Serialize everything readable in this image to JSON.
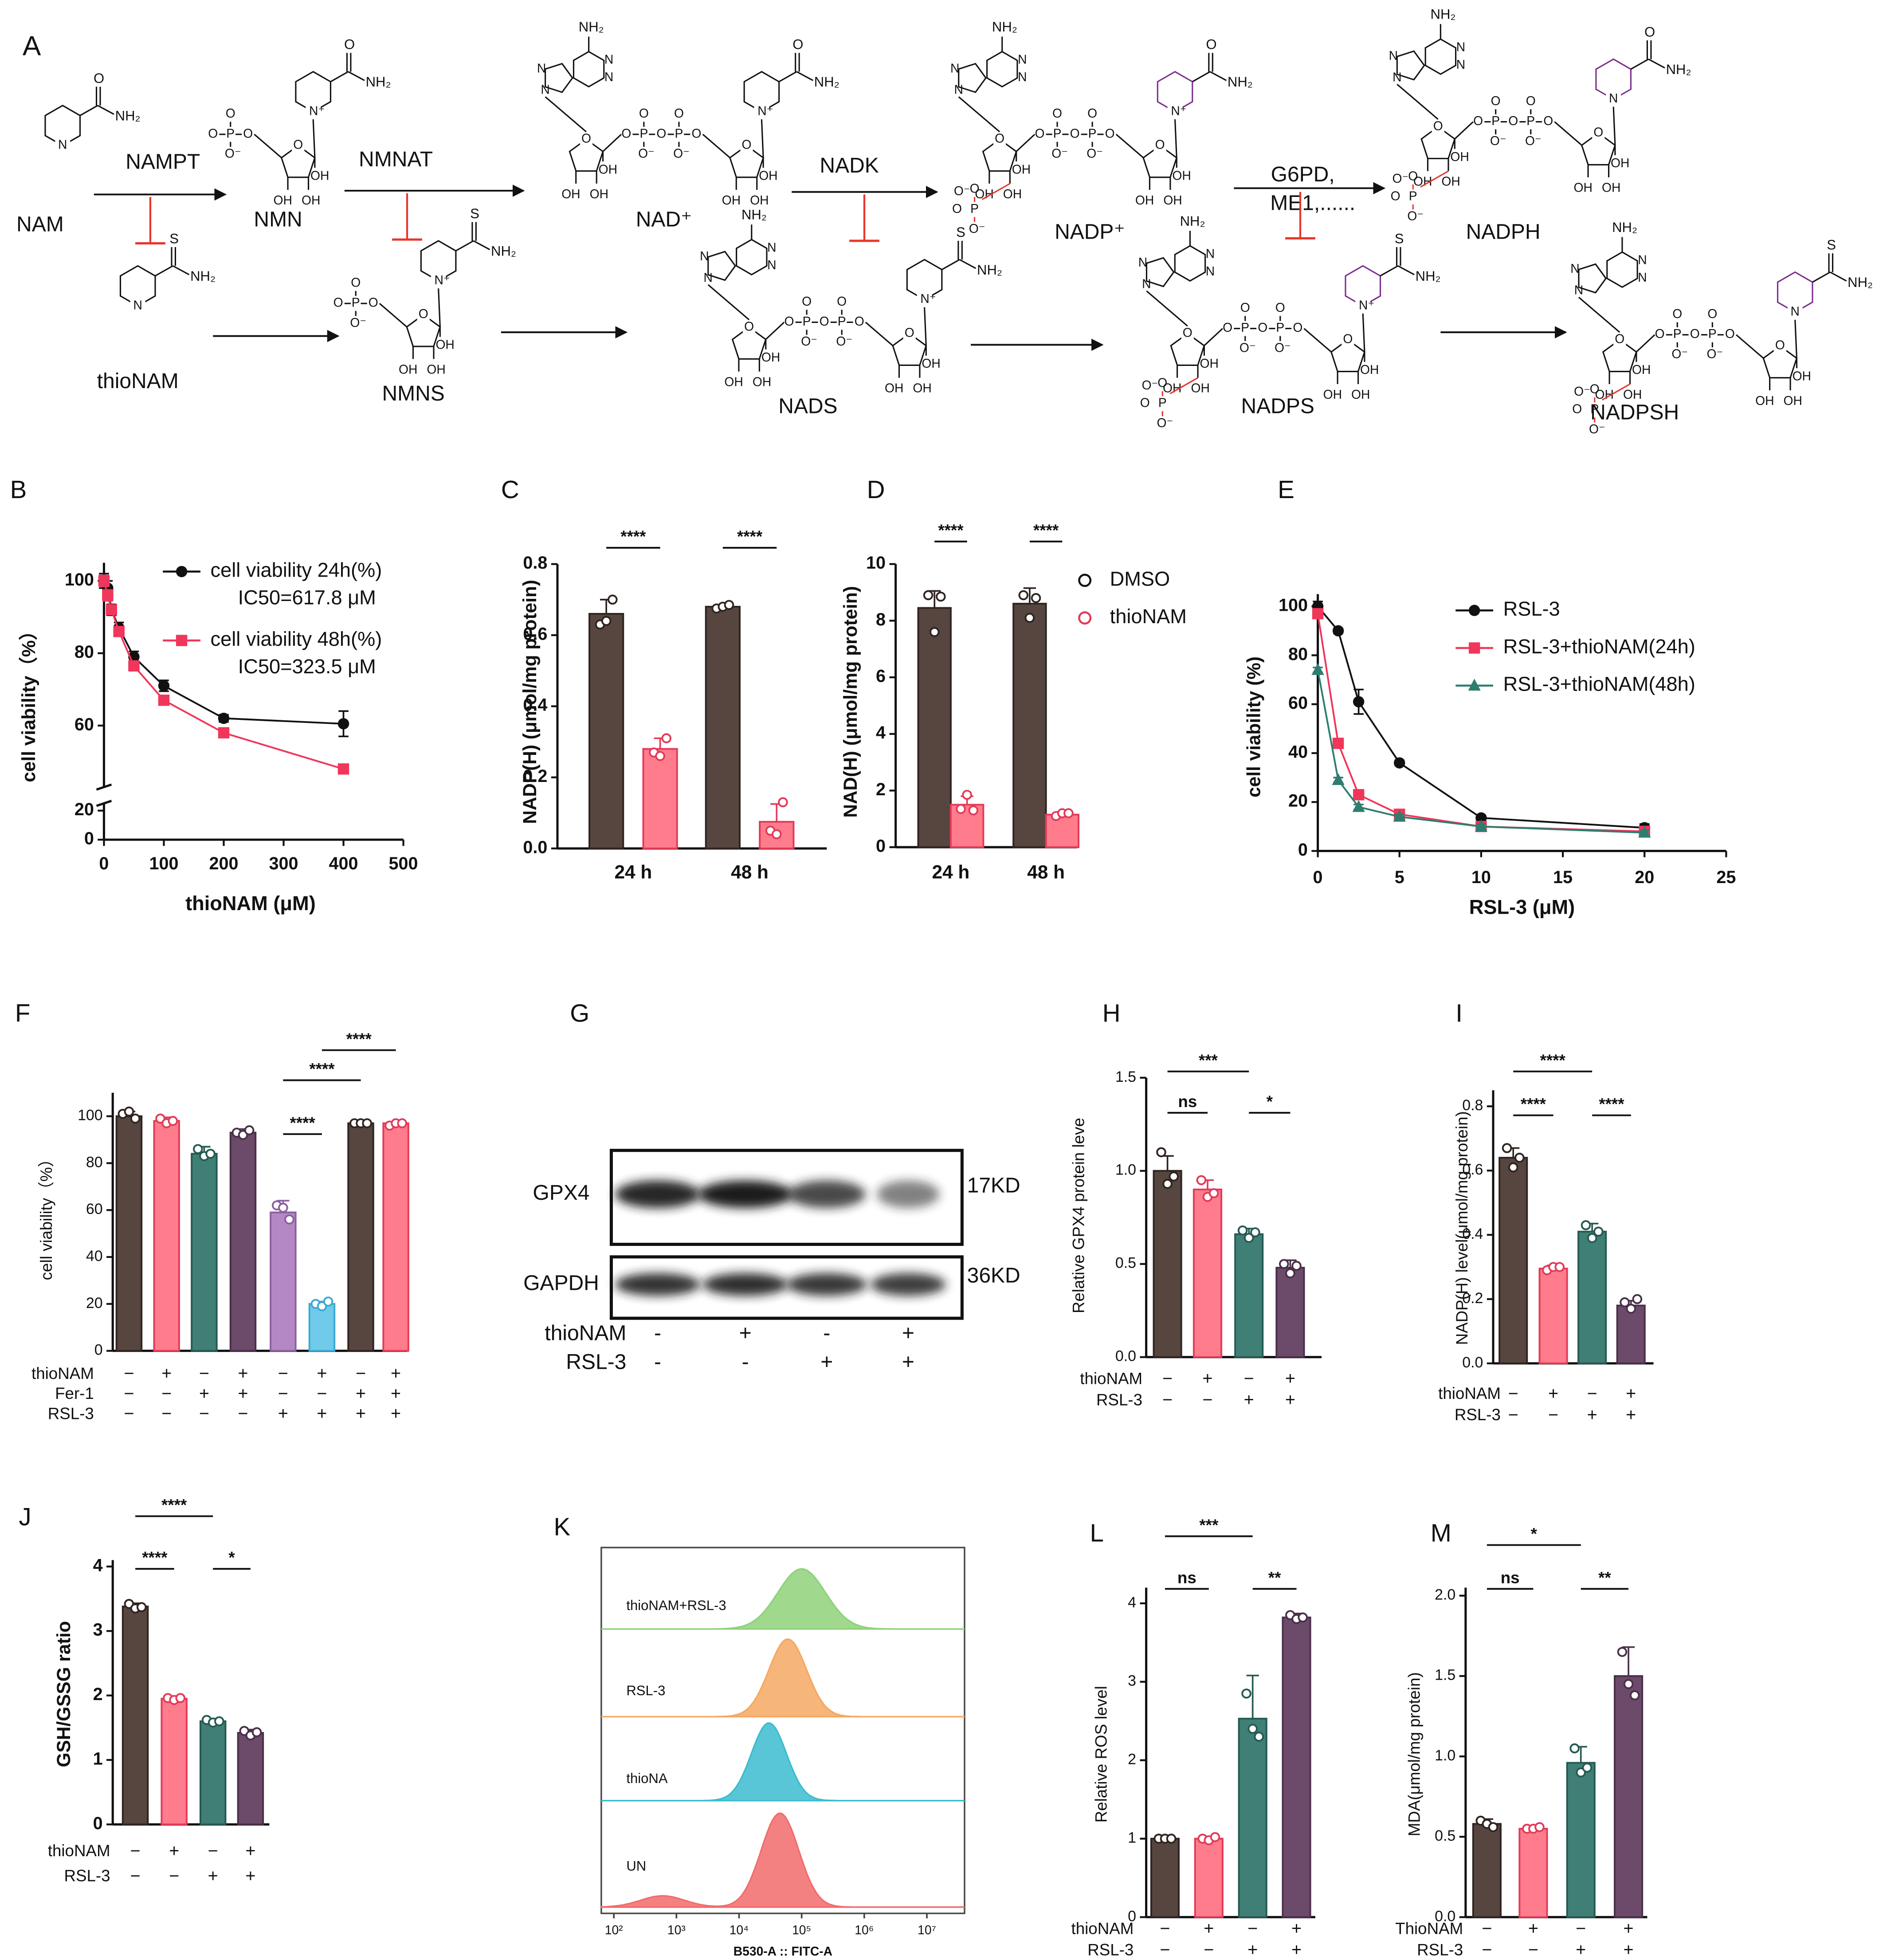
{
  "pathway": {
    "panel": "A",
    "compounds": [
      "NAM",
      "NMN",
      "NAD⁺",
      "NADP⁺",
      "NADPH",
      "thioNAM",
      "NMNS",
      "NADS",
      "NADPS",
      "NADPSH"
    ],
    "enzymes": [
      "NAMPT",
      "NMNAT",
      "NADK",
      "G6PD,",
      "ME1,......"
    ],
    "atoms": {
      "amine": "NH₂",
      "hydroxyl": "OH",
      "nitrogen": "N",
      "cation": "N⁺",
      "oxygen": "O",
      "oxide": "O⁻",
      "phosphorus": "P",
      "sulfur": "S"
    }
  },
  "blot": {
    "panel": "G",
    "bands": [
      {
        "name": "GPX4",
        "size": "17KD"
      },
      {
        "name": "GAPDH",
        "size": "36KD"
      }
    ],
    "conditions": [
      {
        "name": "thioNAM",
        "signs": [
          "-",
          "+",
          "-",
          "+"
        ]
      },
      {
        "name": "RSL-3",
        "signs": [
          "-",
          "-",
          "+",
          "+"
        ]
      }
    ]
  },
  "chart_data": [
    {
      "type": "line",
      "panel": "B",
      "xlabel": "thioNAM (μM)",
      "ylabel": "cell viability（%）",
      "xlim": [
        0,
        500
      ],
      "xticks": [
        0,
        100,
        200,
        300,
        400,
        500
      ],
      "ylim": [
        0,
        105
      ],
      "axis_break": [
        25,
        43
      ],
      "yticks": [
        0,
        20,
        60,
        80,
        100
      ],
      "series": [
        {
          "name": "cell viability 24h(%)",
          "ic50_label": "IC50=617.8 μM",
          "color": "#111111",
          "marker": "circle",
          "x": [
            0,
            6.25,
            12.5,
            25,
            50,
            100,
            200,
            400
          ],
          "values": [
            100,
            98,
            92,
            87,
            79,
            71,
            62,
            60.5
          ],
          "errors": [
            2,
            2,
            1.5,
            1.5,
            1.5,
            1.5,
            1,
            3.5
          ]
        },
        {
          "name": "cell viability 48h(%)",
          "ic50_label": "IC50=323.5 μM",
          "color": "#f0365a",
          "marker": "square",
          "x": [
            0,
            6.25,
            12.5,
            25,
            50,
            100,
            200,
            400
          ],
          "values": [
            100,
            96,
            92,
            86,
            76.5,
            67,
            58,
            48
          ],
          "errors": [
            1.5,
            1.5,
            1,
            1,
            1,
            1,
            1,
            1
          ]
        }
      ]
    },
    {
      "type": "bar",
      "panel": "C",
      "ylabel": "NADP(H)  (μmol/mg protein)",
      "categories": [
        "24 h",
        "48 h"
      ],
      "ylim": [
        0,
        0.8
      ],
      "yticks": [
        {
          "value": 0,
          "label": "0.0"
        },
        0.2,
        0.4,
        0.6,
        0.8
      ],
      "series": [
        {
          "color": "#574640",
          "edge": "#2f2420",
          "values": [
            0.66,
            0.68
          ],
          "errors": [
            0.04,
            0.005
          ],
          "replicates": [
            [
              0.63,
              0.64,
              0.7
            ],
            [
              0.675,
              0.68,
              0.685
            ]
          ]
        },
        {
          "color": "#ff7c8c",
          "edge": "#e33a58",
          "values": [
            0.28,
            0.075
          ],
          "errors": [
            0.03,
            0.05
          ],
          "replicates": [
            [
              0.27,
              0.26,
              0.31
            ],
            [
              0.05,
              0.04,
              0.13
            ]
          ]
        }
      ],
      "significance": [
        {
          "label": "****",
          "from": 0,
          "to": 1
        },
        {
          "label": "****",
          "from": 2,
          "to": 3
        }
      ]
    },
    {
      "type": "bar",
      "panel": "D",
      "ylabel": "NAD(H)  (μmol/mg protein)",
      "categories": [
        "24 h",
        "48 h"
      ],
      "ylim": [
        0,
        10
      ],
      "yticks": [
        0,
        2,
        4,
        6,
        8,
        10
      ],
      "legend": true,
      "series": [
        {
          "name": "DMSO",
          "color": "#574640",
          "edge": "#2f2420",
          "values": [
            8.45,
            8.6
          ],
          "errors": [
            0.6,
            0.55
          ],
          "replicates": [
            [
              8.9,
              7.6,
              8.85
            ],
            [
              8.9,
              8.1,
              8.8
            ]
          ]
        },
        {
          "name": "thioNAM",
          "color": "#ff7c8c",
          "edge": "#e33a58",
          "values": [
            1.5,
            1.15
          ],
          "errors": [
            0.3,
            0.1
          ],
          "replicates": [
            [
              1.35,
              1.85,
              1.3
            ],
            [
              1.1,
              1.2,
              1.2
            ]
          ]
        }
      ],
      "significance": [
        {
          "label": "****",
          "from": 0,
          "to": 1
        },
        {
          "label": "****",
          "from": 2,
          "to": 3
        }
      ]
    },
    {
      "type": "line",
      "panel": "E",
      "xlabel": "RSL-3 (μM)",
      "ylabel": "cell viability (%)",
      "xlim": [
        0,
        25
      ],
      "xticks": [
        0,
        5,
        10,
        15,
        20,
        25
      ],
      "ylim": [
        0,
        105
      ],
      "yticks": [
        0,
        20,
        40,
        60,
        80,
        100
      ],
      "series": [
        {
          "name": "RSL-3",
          "color": "#111111",
          "marker": "circle",
          "x": [
            0,
            1.25,
            2.5,
            5,
            10,
            20
          ],
          "values": [
            100,
            90,
            61,
            36,
            13.5,
            9.5
          ],
          "errors": [
            2,
            1,
            5,
            1,
            1,
            1.5
          ]
        },
        {
          "name": "RSL-3+thioNAM(24h)",
          "color": "#f0365a",
          "marker": "square",
          "x": [
            0,
            1.25,
            2.5,
            5,
            10,
            20
          ],
          "values": [
            97,
            44,
            23,
            15,
            10,
            8
          ],
          "errors": [
            1,
            1,
            1,
            1,
            1,
            1
          ]
        },
        {
          "name": "RSL-3+thioNAM(48h)",
          "color": "#2e7d6f",
          "marker": "triangle",
          "x": [
            0,
            1.25,
            2.5,
            5,
            10,
            20
          ],
          "values": [
            74,
            29,
            18,
            14,
            10,
            7.5
          ],
          "errors": [
            1,
            1,
            1,
            1,
            1,
            1
          ]
        }
      ]
    },
    {
      "type": "bar",
      "panel": "F",
      "ylabel": "cell viability（%）",
      "ylim": [
        0,
        110
      ],
      "yticks": [
        0,
        20,
        40,
        60,
        80,
        100
      ],
      "values": [
        100,
        98,
        84,
        93,
        59,
        20,
        97,
        97
      ],
      "errors": [
        2,
        1.5,
        3,
        1.5,
        5,
        1,
        0.5,
        0.5
      ],
      "colors": [
        "#574640",
        "#ff7c8c",
        "#3f7f76",
        "#6c4a6a",
        "#b488c4",
        "#6fcbe9",
        "#574640",
        "#ff7c8c"
      ],
      "edge_colors": [
        "#2f2420",
        "#e33a58",
        "#255a52",
        "#4a2f49",
        "#8c5fa0",
        "#3ba9d4",
        "#2f2420",
        "#e33a58"
      ],
      "replicates": [
        [
          101,
          102,
          99
        ],
        [
          99,
          97,
          98
        ],
        [
          86,
          83,
          84
        ],
        [
          93,
          92,
          94
        ],
        [
          62,
          61,
          56
        ],
        [
          20,
          19,
          21
        ],
        [
          97,
          97,
          97
        ],
        [
          96,
          97,
          97
        ]
      ],
      "conditions": [
        {
          "name": "thioNAM",
          "signs": [
            "−",
            "+",
            "−",
            "+",
            "−",
            "+",
            "−",
            "+"
          ]
        },
        {
          "name": "Fer-1",
          "signs": [
            "−",
            "−",
            "+",
            "+",
            "−",
            "−",
            "+",
            "+"
          ]
        },
        {
          "name": "RSL-3",
          "signs": [
            "−",
            "−",
            "−",
            "−",
            "+",
            "+",
            "+",
            "+"
          ]
        }
      ],
      "significance": [
        {
          "label": "****",
          "from": 4,
          "to": 5
        },
        {
          "label": "****",
          "from": 4,
          "to": 6
        },
        {
          "label": "****",
          "from": 5,
          "to": 7
        }
      ]
    },
    {
      "type": "bar",
      "panel": "H",
      "ylabel": "Relative GPX4 protein leve",
      "ylim": [
        0,
        1.5
      ],
      "yticks": [
        {
          "value": 0,
          "label": "0.0"
        },
        0.5,
        {
          "value": 1,
          "label": "1.0"
        },
        1.5
      ],
      "values": [
        1.0,
        0.9,
        0.66,
        0.48
      ],
      "errors": [
        0.08,
        0.05,
        0.03,
        0.04
      ],
      "colors": [
        "#574640",
        "#ff7c8c",
        "#3f7f76",
        "#6c4a6a"
      ],
      "edge_colors": [
        "#2f2420",
        "#e33a58",
        "#255a52",
        "#4a2f49"
      ],
      "replicates": [
        [
          1.1,
          0.93,
          0.97
        ],
        [
          0.95,
          0.86,
          0.88
        ],
        [
          0.68,
          0.64,
          0.67
        ],
        [
          0.5,
          0.45,
          0.49
        ]
      ],
      "conditions": [
        {
          "name": "thioNAM",
          "signs": [
            "−",
            "+",
            "−",
            "+"
          ]
        },
        {
          "name": "RSL-3",
          "signs": [
            "−",
            "−",
            "+",
            "+"
          ]
        }
      ],
      "significance": [
        {
          "label": "ns",
          "from": 0,
          "to": 1
        },
        {
          "label": "***",
          "from": 0,
          "to": 2
        },
        {
          "label": "*",
          "from": 2,
          "to": 3
        }
      ]
    },
    {
      "type": "bar",
      "panel": "I",
      "ylabel": "NADP(H) level(μmol/mg protein)",
      "ylim": [
        0,
        0.85
      ],
      "yticks": [
        {
          "value": 0,
          "label": "0.0"
        },
        0.2,
        0.4,
        0.6,
        0.8
      ],
      "values": [
        0.64,
        0.295,
        0.41,
        0.18
      ],
      "errors": [
        0.03,
        0.01,
        0.025,
        0.015
      ],
      "colors": [
        "#574640",
        "#ff7c8c",
        "#3f7f76",
        "#6c4a6a"
      ],
      "edge_colors": [
        "#2f2420",
        "#e33a58",
        "#255a52",
        "#4a2f49"
      ],
      "replicates": [
        [
          0.67,
          0.61,
          0.64
        ],
        [
          0.29,
          0.3,
          0.3
        ],
        [
          0.43,
          0.39,
          0.41
        ],
        [
          0.19,
          0.17,
          0.2
        ]
      ],
      "conditions": [
        {
          "name": "thioNAM",
          "signs": [
            "−",
            "+",
            "−",
            "+"
          ]
        },
        {
          "name": "RSL-3",
          "signs": [
            "−",
            "−",
            "+",
            "+"
          ]
        }
      ],
      "significance": [
        {
          "label": "****",
          "from": 0,
          "to": 1
        },
        {
          "label": "****",
          "from": 0,
          "to": 2
        },
        {
          "label": "****",
          "from": 2,
          "to": 3
        }
      ]
    },
    {
      "type": "bar",
      "panel": "J",
      "ylabel": "GSH/GSSG ratio",
      "ylim": [
        0,
        4.1
      ],
      "yticks": [
        0,
        1,
        2,
        3,
        4
      ],
      "values": [
        3.38,
        1.95,
        1.6,
        1.42
      ],
      "errors": [
        0.05,
        0.04,
        0.04,
        0.05
      ],
      "colors": [
        "#574640",
        "#ff7c8c",
        "#3f7f76",
        "#6c4a6a"
      ],
      "edge_colors": [
        "#2f2420",
        "#e33a58",
        "#255a52",
        "#4a2f49"
      ],
      "replicates": [
        [
          3.42,
          3.35,
          3.37
        ],
        [
          1.96,
          1.93,
          1.96
        ],
        [
          1.62,
          1.58,
          1.6
        ],
        [
          1.45,
          1.38,
          1.43
        ]
      ],
      "conditions": [
        {
          "name": "thioNAM",
          "signs": [
            "−",
            "+",
            "−",
            "+"
          ]
        },
        {
          "name": "RSL-3",
          "signs": [
            "−",
            "−",
            "+",
            "+"
          ]
        }
      ],
      "significance": [
        {
          "label": "****",
          "from": 0,
          "to": 1
        },
        {
          "label": "****",
          "from": 0,
          "to": 2
        },
        {
          "label": "*",
          "from": 2,
          "to": 3
        }
      ]
    },
    {
      "type": "density",
      "panel": "K",
      "xlabel": "B530-A :: FITC-A",
      "log_x": true,
      "xlim": [
        63,
        40000000
      ],
      "xticks": [
        {
          "value": 100,
          "label": "10²"
        },
        {
          "value": 1000,
          "label": "10³"
        },
        {
          "value": 10000,
          "label": "10⁴"
        },
        {
          "value": 100000,
          "label": "10⁵"
        },
        {
          "value": 1000000,
          "label": "10⁶"
        },
        {
          "value": 10000000,
          "label": "10⁷"
        }
      ],
      "series": [
        {
          "name": "thioNAM+RSL-3",
          "color": "#8fd17a",
          "peak": 100000,
          "spread": 0.38
        },
        {
          "name": "RSL-3",
          "color": "#f5a862",
          "peak": 60000,
          "spread": 0.3
        },
        {
          "name": "thioNA",
          "color": "#3bbccf",
          "peak": 30000,
          "spread": 0.28
        },
        {
          "name": "UN",
          "color": "#f26b6b",
          "peak": 45000,
          "spread": 0.3,
          "minor_peak": 600
        }
      ]
    },
    {
      "type": "bar",
      "panel": "L",
      "ylabel": "Relative ROS level",
      "ylim": [
        0,
        4.2
      ],
      "yticks": [
        0,
        1,
        2,
        3,
        4
      ],
      "values": [
        1.0,
        1.0,
        2.53,
        3.82
      ],
      "errors": [
        0.01,
        0.01,
        0.55,
        0.05
      ],
      "colors": [
        "#574640",
        "#ff7c8c",
        "#3f7f76",
        "#6c4a6a"
      ],
      "edge_colors": [
        "#2f2420",
        "#e33a58",
        "#255a52",
        "#4a2f49"
      ],
      "replicates": [
        [
          1,
          1,
          1
        ],
        [
          1,
          0.98,
          1.02
        ],
        [
          2.85,
          2.4,
          2.3
        ],
        [
          3.85,
          3.8,
          3.82
        ]
      ],
      "conditions": [
        {
          "name": "thioNAM",
          "signs": [
            "−",
            "+",
            "−",
            "+"
          ]
        },
        {
          "name": "RSL-3",
          "signs": [
            "−",
            "−",
            "+",
            "+"
          ]
        }
      ],
      "significance": [
        {
          "label": "ns",
          "from": 0,
          "to": 1
        },
        {
          "label": "***",
          "from": 0,
          "to": 2
        },
        {
          "label": "**",
          "from": 2,
          "to": 3
        }
      ]
    },
    {
      "type": "bar",
      "panel": "M",
      "ylabel": "MDA(μmol/mg protein)",
      "ylim": [
        0,
        2.05
      ],
      "yticks": [
        {
          "value": 0,
          "label": "0.0"
        },
        0.5,
        {
          "value": 1,
          "label": "1.0"
        },
        1.5,
        {
          "value": 2,
          "label": "2.0"
        }
      ],
      "values": [
        0.58,
        0.55,
        0.96,
        1.5
      ],
      "errors": [
        0.03,
        0.01,
        0.1,
        0.18
      ],
      "colors": [
        "#574640",
        "#ff7c8c",
        "#3f7f76",
        "#6c4a6a"
      ],
      "edge_colors": [
        "#2f2420",
        "#e33a58",
        "#255a52",
        "#4a2f49"
      ],
      "replicates": [
        [
          0.6,
          0.58,
          0.56
        ],
        [
          0.55,
          0.55,
          0.56
        ],
        [
          1.05,
          0.9,
          0.93
        ],
        [
          1.65,
          1.45,
          1.38
        ]
      ],
      "conditions": [
        {
          "name": "ThioNAM",
          "signs": [
            "−",
            "+",
            "−",
            "+"
          ]
        },
        {
          "name": "RSL-3",
          "signs": [
            "−",
            "−",
            "+",
            "+"
          ]
        }
      ],
      "significance": [
        {
          "label": "ns",
          "from": 0,
          "to": 1
        },
        {
          "label": "*",
          "from": 0,
          "to": 2
        },
        {
          "label": "**",
          "from": 2,
          "to": 3
        }
      ]
    }
  ]
}
